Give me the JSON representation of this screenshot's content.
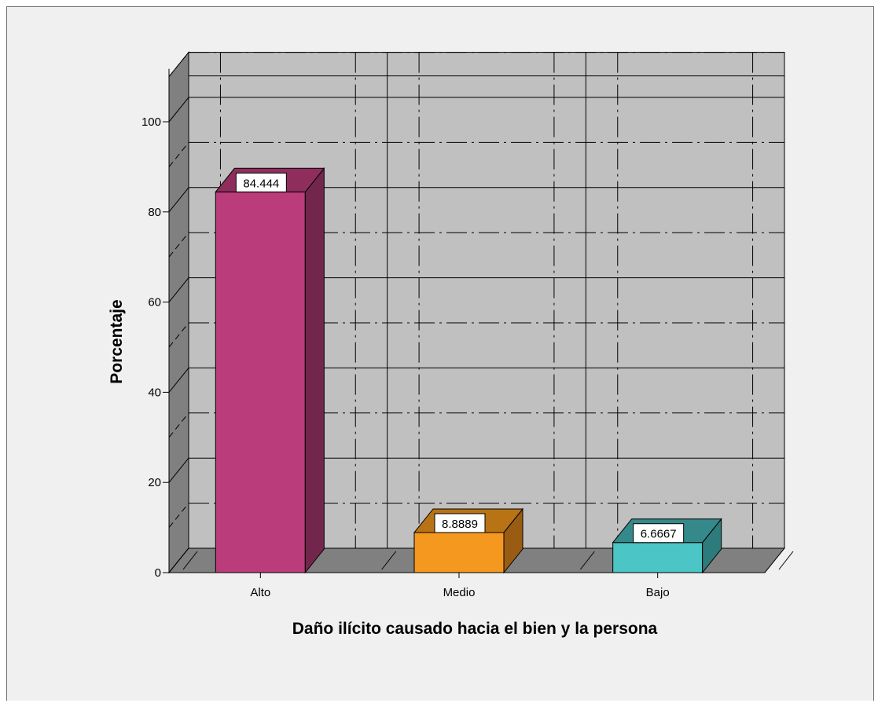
{
  "chart_data": {
    "type": "bar",
    "xlabel": "Daño ilícito causado hacia el bien y la persona",
    "ylabel": "Porcentaje",
    "categories": [
      "Alto",
      "Medio",
      "Bajo"
    ],
    "values": [
      84.444,
      8.8889,
      6.6667
    ],
    "value_labels": [
      "84.444",
      "8.8889",
      "6.6667"
    ],
    "yticks": [
      0,
      20,
      40,
      60,
      80,
      100
    ],
    "ylim": [
      0,
      110
    ],
    "style": "3d",
    "grid": true,
    "legend": "none",
    "colors": {
      "bars": [
        "#bb3c7a",
        "#f5981f",
        "#4bc5c6"
      ],
      "bars_side": [
        "#73264b",
        "#9a5c13",
        "#2e7b7c"
      ],
      "bars_top": [
        "#8f2e5d",
        "#b87315",
        "#36898a"
      ],
      "wall": "#c0c0c0",
      "floor": "#808080",
      "frame_background": "#f0f0f0"
    }
  }
}
